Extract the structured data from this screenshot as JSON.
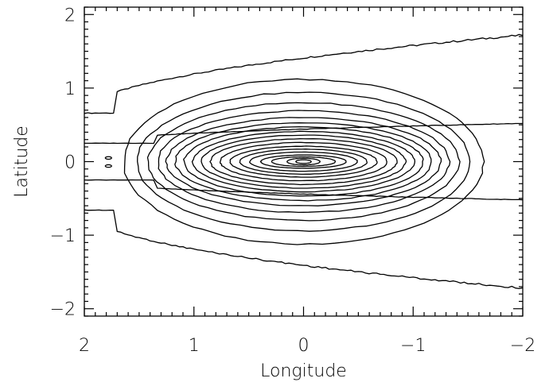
{
  "chart_data": {
    "type": "contour",
    "xlabel": "Longitude",
    "ylabel": "Latitude",
    "xlim": [
      2,
      -2
    ],
    "ylim": [
      -2.1,
      2.1
    ],
    "x_ticks": [
      2,
      1,
      0,
      -1,
      -2
    ],
    "x_tick_labels": [
      "2",
      "1",
      "0",
      "−1",
      "−2"
    ],
    "y_ticks": [
      -2,
      -1,
      0,
      1,
      2
    ],
    "y_tick_labels": [
      "−2",
      "−1",
      "0",
      "1",
      "2"
    ],
    "center": [
      0,
      0
    ],
    "contours": [
      {
        "level": 1,
        "shape": "band",
        "half_width": [
          0.66,
          1.72
        ]
      },
      {
        "level": 2,
        "shape": "band",
        "half_width": [
          0.25,
          0.52
        ]
      },
      {
        "level": 3,
        "shape": "ellipse",
        "a": 1.64,
        "b": 1.12
      },
      {
        "level": 4,
        "shape": "ellipse",
        "a": 1.52,
        "b": 0.94
      },
      {
        "level": 5,
        "shape": "ellipse",
        "a": 1.42,
        "b": 0.8
      },
      {
        "level": 6,
        "shape": "ellipse",
        "a": 1.33,
        "b": 0.69
      },
      {
        "level": 7,
        "shape": "ellipse",
        "a": 1.25,
        "b": 0.6
      },
      {
        "level": 8,
        "shape": "ellipse",
        "a": 1.17,
        "b": 0.53
      },
      {
        "level": 9,
        "shape": "ellipse",
        "a": 1.09,
        "b": 0.47
      },
      {
        "level": 10,
        "shape": "ellipse",
        "a": 1.01,
        "b": 0.41
      },
      {
        "level": 11,
        "shape": "ellipse",
        "a": 0.93,
        "b": 0.36
      },
      {
        "level": 12,
        "shape": "ellipse",
        "a": 0.85,
        "b": 0.31
      },
      {
        "level": 13,
        "shape": "ellipse",
        "a": 0.76,
        "b": 0.26
      },
      {
        "level": 14,
        "shape": "ellipse",
        "a": 0.67,
        "b": 0.21
      },
      {
        "level": 15,
        "shape": "ellipse",
        "a": 0.58,
        "b": 0.17
      },
      {
        "level": 16,
        "shape": "ellipse",
        "a": 0.49,
        "b": 0.13
      },
      {
        "level": 17,
        "shape": "ellipse",
        "a": 0.39,
        "b": 0.09
      },
      {
        "level": 18,
        "shape": "ellipse",
        "a": 0.29,
        "b": 0.065
      },
      {
        "level": 19,
        "shape": "ellipse",
        "a": 0.15,
        "b": 0.045
      },
      {
        "level": 20,
        "shape": "ellipse",
        "a": 0.07,
        "b": 0.025
      }
    ],
    "side_features": [
      {
        "x": 1.78,
        "y": 0.05
      },
      {
        "x": 1.78,
        "y": -0.06
      }
    ],
    "grid": false,
    "legend": "none"
  }
}
